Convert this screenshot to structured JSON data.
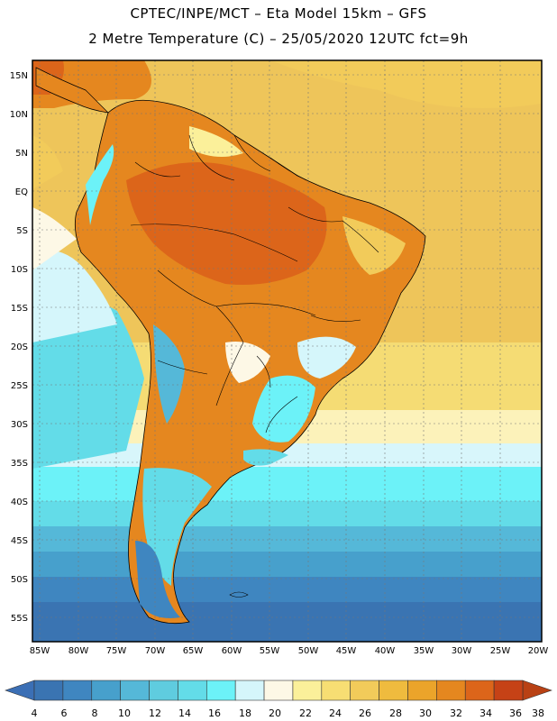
{
  "header": {
    "line1": "CPTEC/INPE/MCT –  Eta Model 15km – GFS",
    "line2": "2 Metre Temperature (C) – 25/05/2020 12UTC fct=9h"
  },
  "map": {
    "lon_ticks": [
      "85W",
      "80W",
      "75W",
      "70W",
      "65W",
      "60W",
      "55W",
      "50W",
      "45W",
      "40W",
      "35W",
      "30W",
      "25W",
      "20W"
    ],
    "lat_ticks": [
      "15N",
      "10N",
      "5N",
      "EQ",
      "5S",
      "10S",
      "15S",
      "20S",
      "25S",
      "30S",
      "35S",
      "40S",
      "45S",
      "50S",
      "55S"
    ]
  },
  "colorbar": {
    "labels": [
      "4",
      "6",
      "8",
      "10",
      "12",
      "14",
      "16",
      "18",
      "20",
      "22",
      "24",
      "26",
      "28",
      "30",
      "32",
      "34",
      "36",
      "38"
    ],
    "colors": [
      "#3a74b2",
      "#3f86c0",
      "#47a0cc",
      "#55b8d8",
      "#5fccdf",
      "#63dce8",
      "#6cf2f8",
      "#d5f6fb",
      "#fdf8e6",
      "#fbf09a",
      "#f7de73",
      "#f2cb5a",
      "#efbb3e",
      "#eba42a",
      "#e5871f",
      "#dc651a",
      "#c64216"
    ],
    "left_color": "#3b6fb5",
    "right_color": "#b94114"
  }
}
